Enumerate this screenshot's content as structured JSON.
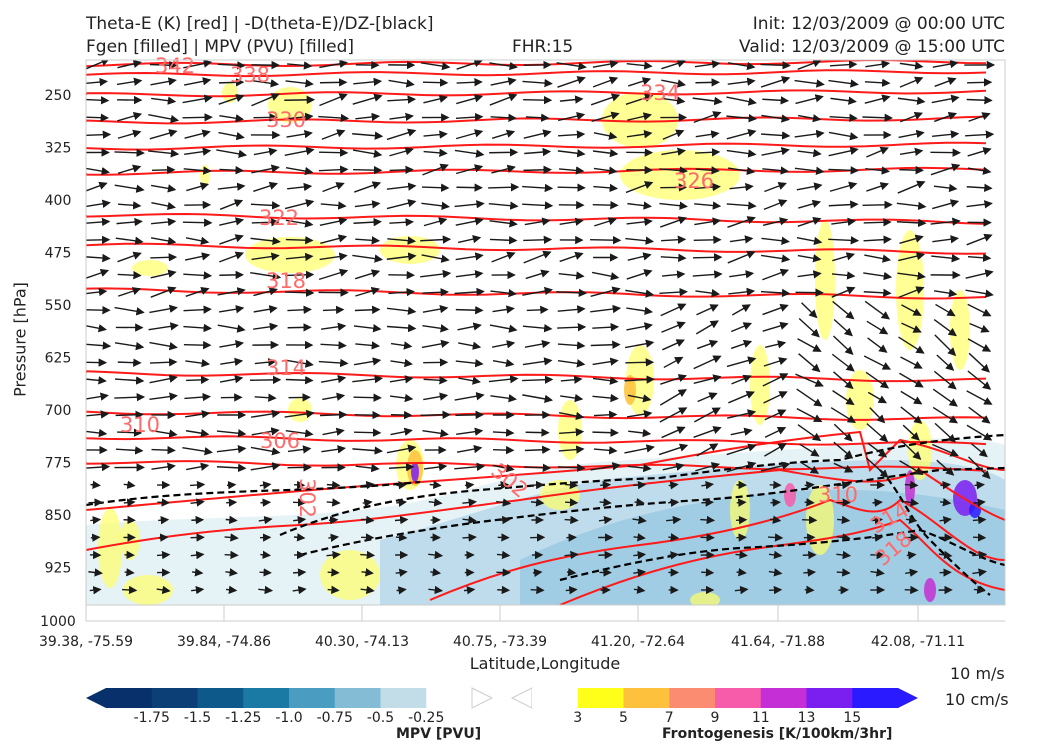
{
  "header": {
    "title_left_1": "Theta-E (K) [red] | -D(theta-E)/DZ-[black]",
    "title_left_2": "Fgen [filled] | MPV (PVU) [filled]",
    "fhr": "FHR:15",
    "init": "Init: 12/03/2009 @ 00:00 UTC",
    "valid": "Valid: 12/03/2009 @ 15:00 UTC"
  },
  "chart_data": {
    "type": "cross-section",
    "xlabel": "Latitude,Longitude",
    "ylabel": "Pressure [hPa]",
    "x_ticks": [
      "39.38, -75.59",
      "39.84, -74.86",
      "40.30, -74.13",
      "40.75, -73.39",
      "41.20, -72.64",
      "41.64, -71.88",
      "42.08, -71.11"
    ],
    "y_ticks": [
      250,
      325,
      400,
      475,
      550,
      625,
      700,
      775,
      850,
      925,
      1000
    ],
    "ylim": [
      1000,
      190
    ],
    "theta_e_contours": [
      {
        "label": "342",
        "level": 342
      },
      {
        "label": "338",
        "level": 338
      },
      {
        "label": "334",
        "level": 334
      },
      {
        "label": "330",
        "level": 330
      },
      {
        "label": "326",
        "level": 326
      },
      {
        "label": "322",
        "level": 322
      },
      {
        "label": "318",
        "level": 318
      },
      {
        "label": "314",
        "level": 314
      },
      {
        "label": "310",
        "level": 310
      },
      {
        "label": "306",
        "level": 306
      },
      {
        "label": "302",
        "level": 302
      }
    ],
    "inline_labels": [
      "302",
      "302",
      "310",
      "314",
      "318"
    ],
    "wind_reference": [
      "10 m/s",
      "10 cm/s"
    ],
    "colorbars": [
      {
        "title": "MPV [PVU]",
        "ticks": [
          "-1.75",
          "-1.5",
          "-1.25",
          "-1.0",
          "-0.75",
          "-0.5",
          "-0.25"
        ],
        "colors": [
          "#08306b",
          "#0b3f76",
          "#0d5a8a",
          "#1a7aa4",
          "#4a9dc0",
          "#84bcd5",
          "#c2dde8",
          "#ffffff"
        ]
      },
      {
        "title": "Frontogenesis [K/100km/3hr]",
        "ticks": [
          "3",
          "5",
          "7",
          "9",
          "11",
          "13",
          "15"
        ],
        "colors": [
          "#ffffff",
          "#ffff1a",
          "#fdc13d",
          "#fb8c72",
          "#f75cab",
          "#c42fd6",
          "#7a1ff0",
          "#2a1aff"
        ]
      }
    ],
    "colors": {
      "theta_e": "#ff1a1a",
      "label": "#ff6a6a",
      "arrows": "#1a1a1a",
      "mpv": "#9ecae1",
      "fgen": "#ffff66"
    }
  }
}
